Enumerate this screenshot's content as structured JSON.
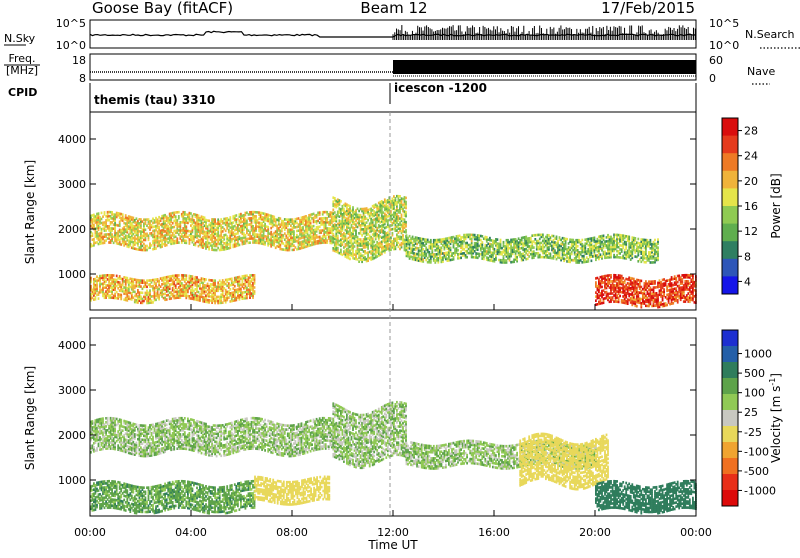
{
  "header": {
    "station": "Goose Bay (fitACF)",
    "beam": "Beam 12",
    "date": "17/Feb/2015"
  },
  "sky_panel": {
    "left_label": "N.Sky",
    "right_label": "N.Search",
    "left_ticks": [
      "10^5",
      "10^0"
    ],
    "right_ticks": [
      "10^5",
      "10^0"
    ]
  },
  "freq_panel": {
    "left_label_line1": "Freq.",
    "left_label_line2": "[MHz]",
    "left_ticks": [
      "18",
      "8"
    ],
    "right_ticks": [
      "60",
      "0"
    ],
    "right_label": "Nave"
  },
  "cpid": {
    "label": "CPID",
    "segments": [
      {
        "name": "themis (tau) 3310",
        "start_hour": 0
      },
      {
        "name": "icescon -1200",
        "start_hour": 12
      }
    ]
  },
  "range_axis": {
    "ylabel": "Slant Range [km]",
    "ticks": [
      "1000",
      "2000",
      "3000",
      "4000"
    ],
    "tick_values": [
      1000,
      2000,
      3000,
      4000
    ],
    "ylim": [
      200,
      4600
    ]
  },
  "time_axis": {
    "xlabel": "Time UT",
    "ticks": [
      "00:00",
      "04:00",
      "08:00",
      "12:00",
      "16:00",
      "20:00",
      "00:00"
    ],
    "tick_hours": [
      0,
      4,
      8,
      12,
      16,
      20,
      24
    ],
    "xlim": [
      0,
      24
    ]
  },
  "power_scale": {
    "label": "Power [dB]",
    "ticks": [
      "4",
      "8",
      "12",
      "16",
      "20",
      "24",
      "28"
    ],
    "colors": [
      "#1515e8",
      "#2e56b8",
      "#2f7f62",
      "#5fae4e",
      "#8fca52",
      "#e5e54a",
      "#f0b33a",
      "#ee7a25",
      "#e53a1c",
      "#d90d0d"
    ]
  },
  "velocity_scale": {
    "label": "Velocity  [m s",
    "label_sup": "-1",
    "label_end": "]",
    "ticks": [
      "1000",
      "500",
      "100",
      "25",
      "-25",
      "-100",
      "-500",
      "-1000"
    ],
    "colors": [
      "#1d2fd0",
      "#245fa8",
      "#2f7d5c",
      "#5ea34a",
      "#90c955",
      "#c8c8c0",
      "#e8d85a",
      "#f0a430",
      "#f07020",
      "#e82f18",
      "#dd0a0a"
    ]
  },
  "chart_data": [
    {
      "type": "heatmap",
      "title": "Power [dB]",
      "xlabel": "Time UT",
      "ylabel": "Slant Range [km]",
      "xlim": [
        0,
        24
      ],
      "ylim": [
        200,
        4600
      ],
      "colorbar_range": [
        2,
        30
      ],
      "echo_bands": [
        {
          "start_hour": 0.0,
          "end_hour": 9.6,
          "range_km": [
            1600,
            2300
          ],
          "power_db": 18
        },
        {
          "start_hour": 9.6,
          "end_hour": 12.5,
          "range_km": [
            1400,
            2600
          ],
          "power_db": 16
        },
        {
          "start_hour": 12.5,
          "end_hour": 22.5,
          "range_km": [
            1300,
            1800
          ],
          "power_db": 14
        },
        {
          "start_hour": 0.0,
          "end_hour": 6.5,
          "range_km": [
            400,
            900
          ],
          "power_db": 20
        },
        {
          "start_hour": 20.0,
          "end_hour": 24.0,
          "range_km": [
            300,
            900
          ],
          "power_db": 26
        }
      ]
    },
    {
      "type": "heatmap",
      "title": "Velocity [m s-1]",
      "xlabel": "Time UT",
      "ylabel": "Slant Range [km]",
      "xlim": [
        0,
        24
      ],
      "ylim": [
        200,
        4600
      ],
      "colorbar_range": [
        -1200,
        1200
      ],
      "echo_bands": [
        {
          "start_hour": 0.0,
          "end_hour": 9.6,
          "range_km": [
            1600,
            2300
          ],
          "velocity": 0
        },
        {
          "start_hour": 9.6,
          "end_hour": 12.5,
          "range_km": [
            1400,
            2600
          ],
          "velocity": 0
        },
        {
          "start_hour": 12.5,
          "end_hour": 20.0,
          "range_km": [
            1300,
            1800
          ],
          "velocity": 0
        },
        {
          "start_hour": 17.0,
          "end_hour": 20.5,
          "range_km": [
            900,
            1900
          ],
          "velocity": -400
        },
        {
          "start_hour": 0.0,
          "end_hour": 6.5,
          "range_km": [
            300,
            900
          ],
          "velocity": 60
        },
        {
          "start_hour": 6.5,
          "end_hour": 9.5,
          "range_km": [
            500,
            1000
          ],
          "velocity": -200
        },
        {
          "start_hour": 20.0,
          "end_hour": 24.0,
          "range_km": [
            300,
            900
          ],
          "velocity": 300
        }
      ]
    }
  ]
}
